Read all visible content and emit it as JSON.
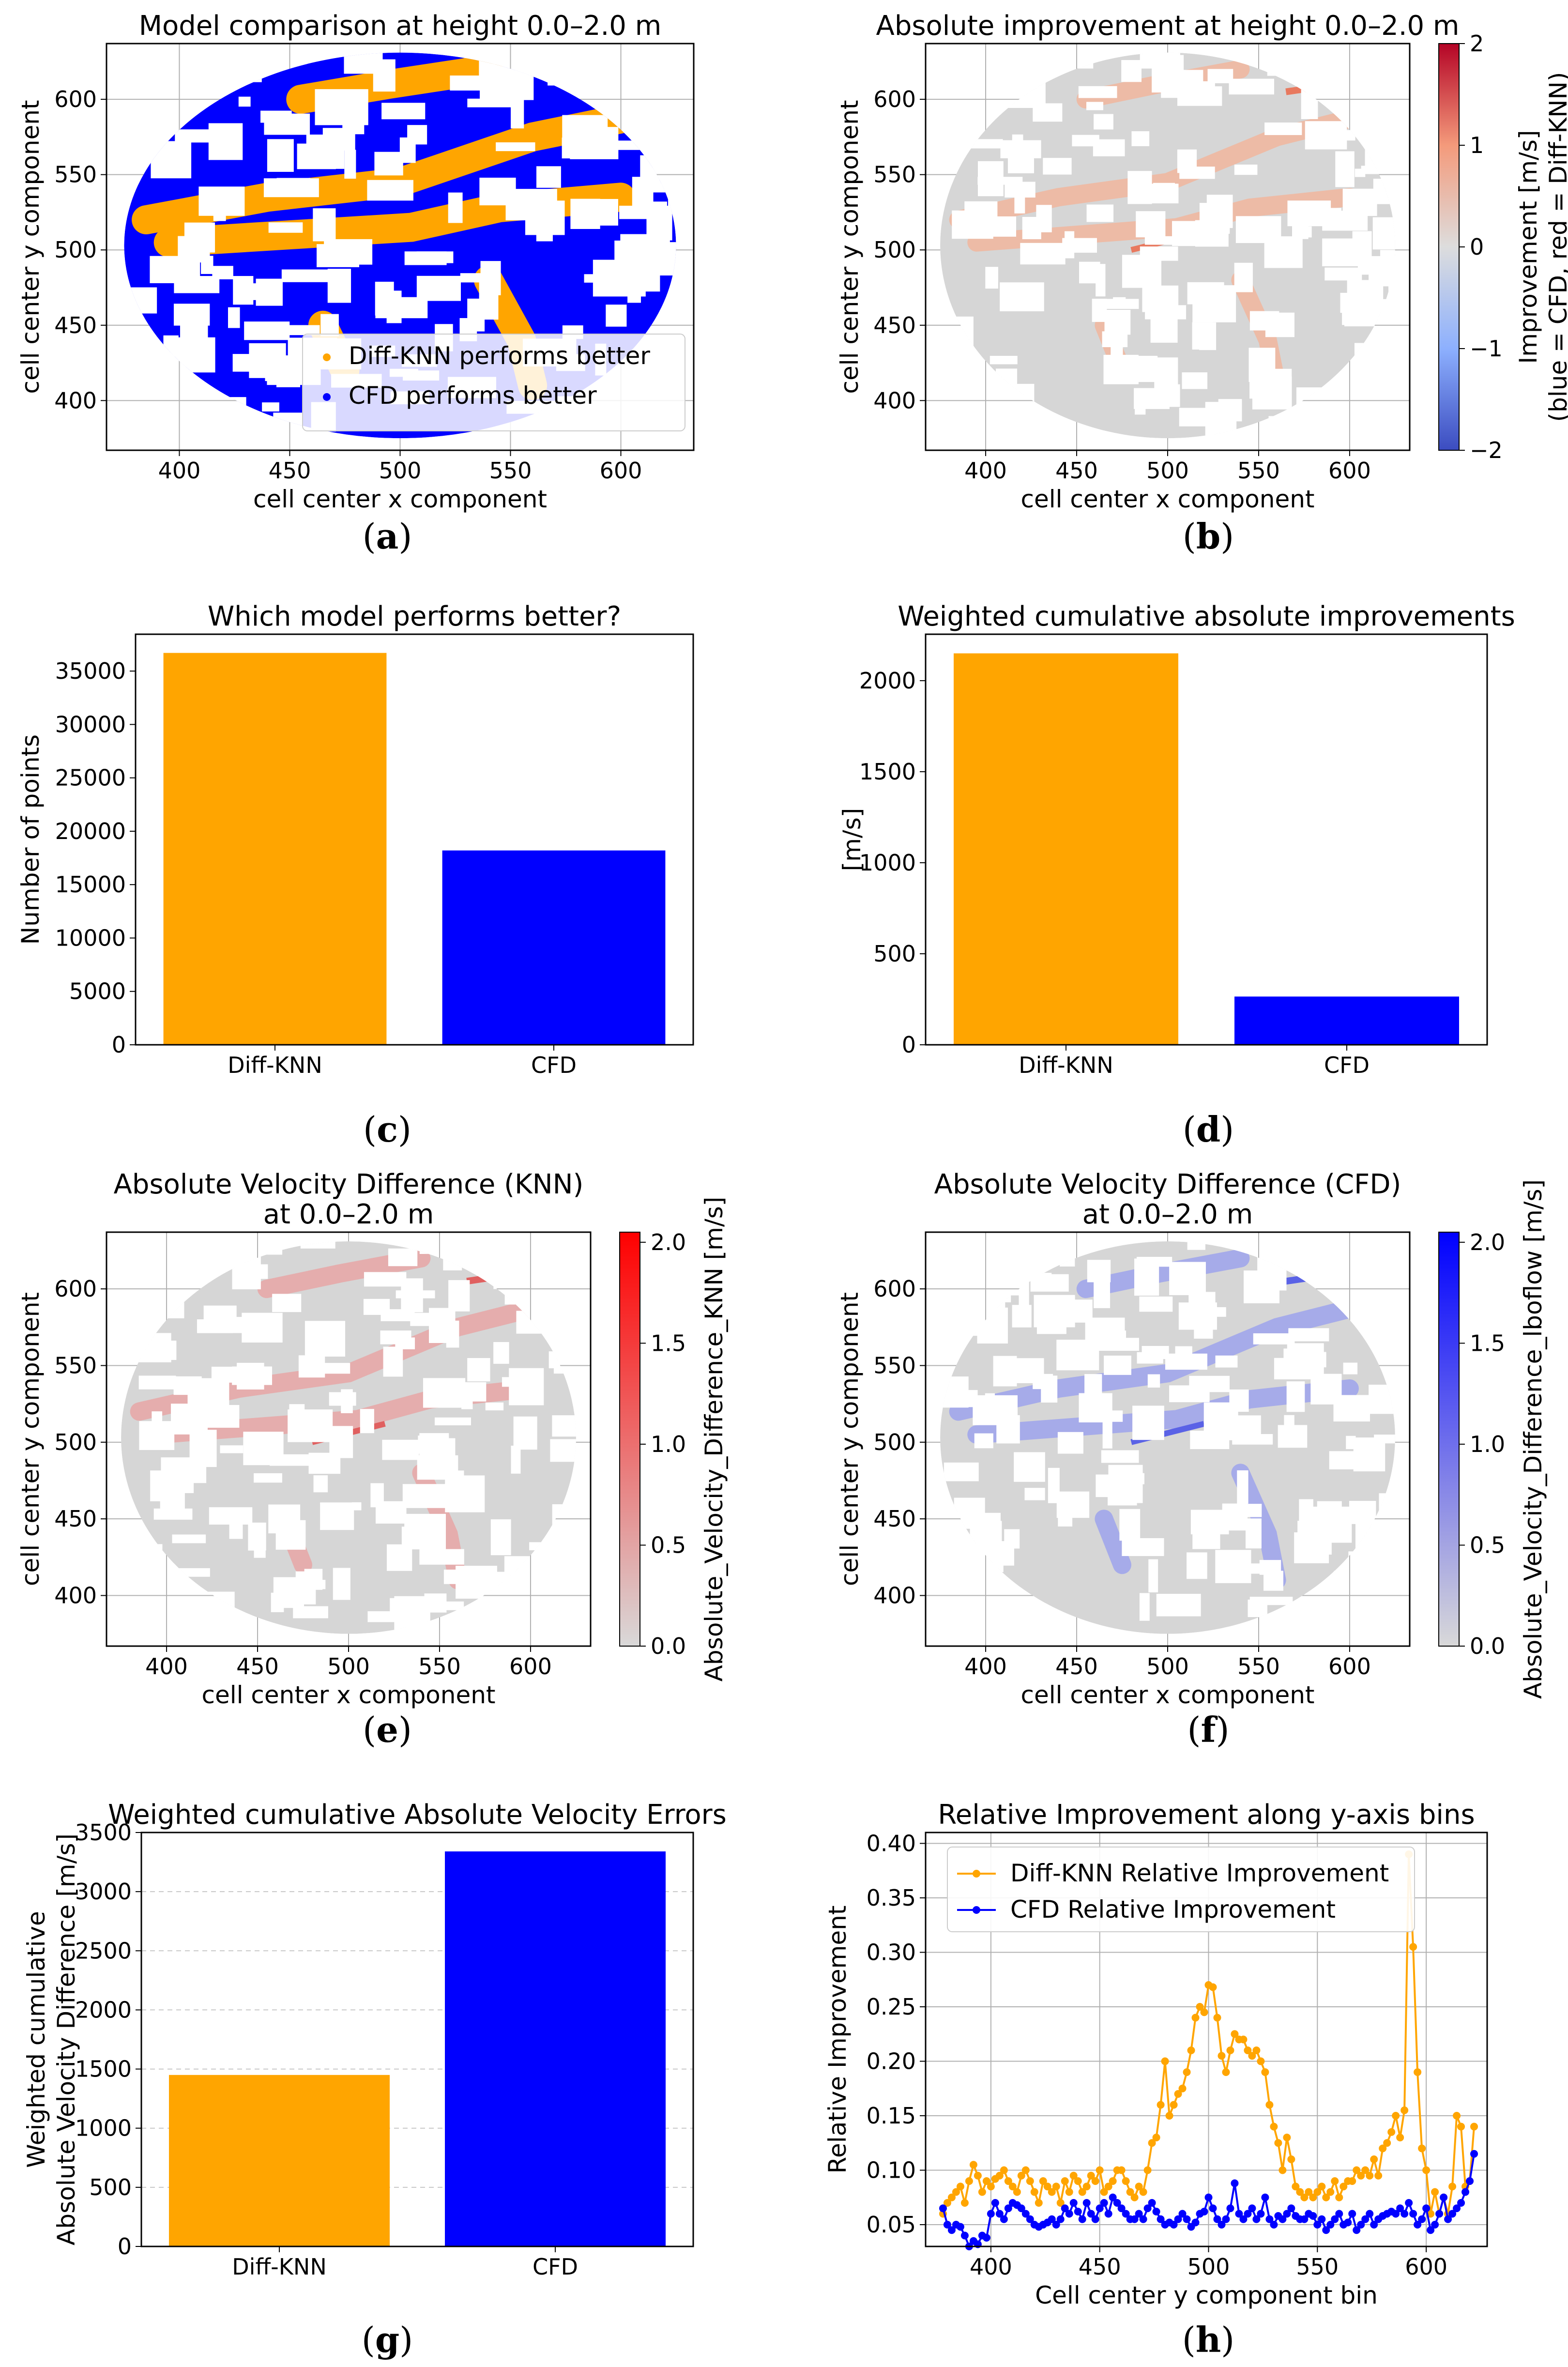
{
  "palette": {
    "orange": "#FFA500",
    "blue": "#0000FF",
    "grey": "#d9d9d9",
    "red": "#ff0000",
    "cool_low": "#3b4cc0",
    "cool_high": "#b40426"
  },
  "captions": [
    "a",
    "b",
    "c",
    "d",
    "e",
    "f",
    "g",
    "h"
  ],
  "chart_data": [
    {
      "id": "a",
      "type": "scatter",
      "title": "Model comparison at height 0.0–2.0 m",
      "xlabel": "cell center x component",
      "ylabel": "cell center y component",
      "xlim": [
        367,
        633
      ],
      "ylim": [
        367,
        637
      ],
      "xticks": [
        400,
        450,
        500,
        550,
        600
      ],
      "yticks": [
        400,
        450,
        500,
        550,
        600
      ],
      "grid": true,
      "legend": {
        "position": "lower-right",
        "entries": [
          {
            "label": "Diff-KNN performs better",
            "color": "#FFA500"
          },
          {
            "label": "CFD performs better",
            "color": "#0000FF"
          }
        ]
      },
      "domain": {
        "center": [
          500,
          503
        ],
        "radius_x": 125,
        "radius_y": 128
      }
    },
    {
      "id": "b",
      "type": "heatmap",
      "title": "Absolute improvement at height 0.0–2.0 m",
      "xlabel": "cell center x component",
      "ylabel": "cell center y component",
      "xlim": [
        367,
        633
      ],
      "ylim": [
        367,
        637
      ],
      "xticks": [
        400,
        450,
        500,
        550,
        600
      ],
      "yticks": [
        400,
        450,
        500,
        550,
        600
      ],
      "grid": true,
      "colorbar": {
        "min": -2,
        "max": 2,
        "ticks": [
          -2,
          -1,
          0,
          1,
          2
        ],
        "tick_labels": [
          "−2",
          "−1",
          "0",
          "1",
          "2"
        ],
        "label": "Improvement [m/s]",
        "label2": "(blue = CFD, red = Diff-KNN)",
        "cmap": "coolwarm"
      }
    },
    {
      "id": "c",
      "type": "bar",
      "title": "Which model performs better?",
      "categories": [
        "Diff-KNN",
        "CFD"
      ],
      "values": [
        36700,
        18200
      ],
      "colors": [
        "#FFA500",
        "#0000FF"
      ],
      "xlabel": "",
      "ylabel": "Number of points",
      "ylim": [
        0,
        38450
      ],
      "yticks": [
        0,
        5000,
        10000,
        15000,
        20000,
        25000,
        30000,
        35000
      ]
    },
    {
      "id": "d",
      "type": "bar",
      "title": "Weighted cumulative absolute improvements",
      "categories": [
        "Diff-KNN",
        "CFD"
      ],
      "values": [
        2150,
        265
      ],
      "colors": [
        "#FFA500",
        "#0000FF"
      ],
      "xlabel": "",
      "ylabel": "[m/s]",
      "ylim": [
        0,
        2255
      ],
      "yticks": [
        0,
        500,
        1000,
        1500,
        2000
      ]
    },
    {
      "id": "e",
      "type": "heatmap",
      "title": "Absolute Velocity Difference (KNN)",
      "title2": "at 0.0–2.0 m",
      "xlabel": "cell center x component",
      "ylabel": "cell center y component",
      "xlim": [
        367,
        633
      ],
      "ylim": [
        367,
        637
      ],
      "xticks": [
        400,
        450,
        500,
        550,
        600
      ],
      "yticks": [
        400,
        450,
        500,
        550,
        600
      ],
      "grid": true,
      "colorbar": {
        "min": 0,
        "max": 2.05,
        "ticks": [
          0,
          0.5,
          1,
          1.5,
          2
        ],
        "tick_labels": [
          "0.0",
          "0.5",
          "1.0",
          "1.5",
          "2.0"
        ],
        "label": "Absolute_Velocity_Difference_KNN [m/s]",
        "cmap": "grey-red"
      }
    },
    {
      "id": "f",
      "type": "heatmap",
      "title": "Absolute Velocity Difference (CFD)",
      "title2": "at 0.0–2.0 m",
      "xlabel": "cell center x component",
      "ylabel": "cell center y component",
      "xlim": [
        367,
        633
      ],
      "ylim": [
        367,
        637
      ],
      "xticks": [
        400,
        450,
        500,
        550,
        600
      ],
      "yticks": [
        400,
        450,
        500,
        550,
        600
      ],
      "grid": true,
      "colorbar": {
        "min": 0,
        "max": 2.05,
        "ticks": [
          0,
          0.5,
          1,
          1.5,
          2
        ],
        "tick_labels": [
          "0.0",
          "0.5",
          "1.0",
          "1.5",
          "2.0"
        ],
        "label": "Absolute_Velocity_Difference_lboflow [m/s]",
        "cmap": "grey-blue"
      }
    },
    {
      "id": "g",
      "type": "bar",
      "title": "Weighted cumulative Absolute Velocity Errors",
      "categories": [
        "Diff-KNN",
        "CFD"
      ],
      "values": [
        1450,
        3340
      ],
      "colors": [
        "#FFA500",
        "#0000FF"
      ],
      "xlabel": "",
      "ylabel": "Weighted cumulative",
      "ylabel2": "Absolute Velocity Difference [m/s]",
      "ylim": [
        0,
        3500
      ],
      "yticks": [
        0,
        500,
        1000,
        1500,
        2000,
        2500,
        3000,
        3500
      ]
    },
    {
      "id": "h",
      "type": "line",
      "title": "Relative Improvement along y-axis bins",
      "xlabel": "Cell center y component bin",
      "ylabel": "Relative Improvement",
      "xlim": [
        370,
        628
      ],
      "ylim": [
        0.03,
        0.41
      ],
      "xticks": [
        400,
        450,
        500,
        550,
        600
      ],
      "yticks": [
        0.05,
        0.1,
        0.15,
        0.2,
        0.25,
        0.3,
        0.35,
        0.4
      ],
      "ytick_labels": [
        "0.05",
        "0.10",
        "0.15",
        "0.20",
        "0.25",
        "0.30",
        "0.35",
        "0.40"
      ],
      "grid": true,
      "legend": {
        "position": "top-left"
      },
      "series": [
        {
          "name": "Diff-KNN Relative Improvement",
          "color": "#FFA500",
          "x": [
            378,
            380,
            382,
            384,
            386,
            388,
            390,
            392,
            394,
            396,
            398,
            400,
            402,
            404,
            406,
            408,
            410,
            412,
            414,
            416,
            418,
            420,
            422,
            424,
            426,
            428,
            430,
            432,
            434,
            436,
            438,
            440,
            442,
            444,
            446,
            448,
            450,
            452,
            454,
            456,
            458,
            460,
            462,
            464,
            466,
            468,
            470,
            472,
            474,
            476,
            478,
            480,
            482,
            484,
            486,
            488,
            490,
            492,
            494,
            496,
            498,
            500,
            502,
            504,
            506,
            508,
            510,
            512,
            514,
            516,
            518,
            520,
            522,
            524,
            526,
            528,
            530,
            532,
            534,
            536,
            538,
            540,
            542,
            544,
            546,
            548,
            550,
            552,
            554,
            556,
            558,
            560,
            562,
            564,
            566,
            568,
            570,
            572,
            574,
            576,
            578,
            580,
            582,
            584,
            586,
            588,
            590,
            592,
            594,
            596,
            598,
            600,
            602,
            604,
            606,
            608,
            610,
            612,
            614,
            616,
            618,
            620,
            622
          ],
          "y": [
            0.06,
            0.07,
            0.075,
            0.08,
            0.085,
            0.07,
            0.09,
            0.105,
            0.095,
            0.08,
            0.09,
            0.085,
            0.092,
            0.095,
            0.1,
            0.09,
            0.085,
            0.08,
            0.095,
            0.1,
            0.09,
            0.08,
            0.07,
            0.09,
            0.085,
            0.08,
            0.085,
            0.07,
            0.09,
            0.08,
            0.095,
            0.09,
            0.08,
            0.085,
            0.095,
            0.09,
            0.1,
            0.08,
            0.085,
            0.09,
            0.1,
            0.1,
            0.09,
            0.08,
            0.075,
            0.085,
            0.08,
            0.1,
            0.125,
            0.13,
            0.16,
            0.2,
            0.15,
            0.16,
            0.17,
            0.175,
            0.19,
            0.21,
            0.24,
            0.25,
            0.245,
            0.27,
            0.268,
            0.24,
            0.205,
            0.19,
            0.21,
            0.225,
            0.22,
            0.22,
            0.21,
            0.205,
            0.21,
            0.2,
            0.19,
            0.16,
            0.14,
            0.125,
            0.1,
            0.13,
            0.11,
            0.085,
            0.08,
            0.075,
            0.08,
            0.075,
            0.08,
            0.085,
            0.075,
            0.08,
            0.09,
            0.075,
            0.085,
            0.09,
            0.09,
            0.1,
            0.095,
            0.1,
            0.095,
            0.11,
            0.095,
            0.12,
            0.125,
            0.135,
            0.15,
            0.13,
            0.155,
            0.39,
            0.305,
            0.19,
            0.12,
            0.1,
            0.06,
            0.08,
            0.06,
            0.075,
            0.06,
            0.085,
            0.15,
            0.14,
            0.085,
            0.09,
            0.14
          ]
        },
        {
          "name": "CFD Relative Improvement",
          "color": "#0000FF",
          "x": [
            378,
            380,
            382,
            384,
            386,
            388,
            390,
            392,
            394,
            396,
            398,
            400,
            402,
            404,
            406,
            408,
            410,
            412,
            414,
            416,
            418,
            420,
            422,
            424,
            426,
            428,
            430,
            432,
            434,
            436,
            438,
            440,
            442,
            444,
            446,
            448,
            450,
            452,
            454,
            456,
            458,
            460,
            462,
            464,
            466,
            468,
            470,
            472,
            474,
            476,
            478,
            480,
            482,
            484,
            486,
            488,
            490,
            492,
            494,
            496,
            498,
            500,
            502,
            504,
            506,
            508,
            510,
            512,
            514,
            516,
            518,
            520,
            522,
            524,
            526,
            528,
            530,
            532,
            534,
            536,
            538,
            540,
            542,
            544,
            546,
            548,
            550,
            552,
            554,
            556,
            558,
            560,
            562,
            564,
            566,
            568,
            570,
            572,
            574,
            576,
            578,
            580,
            582,
            584,
            586,
            588,
            590,
            592,
            594,
            596,
            598,
            600,
            602,
            604,
            606,
            608,
            610,
            612,
            614,
            616,
            618,
            620,
            622
          ],
          "y": [
            0.065,
            0.05,
            0.045,
            0.05,
            0.048,
            0.04,
            0.03,
            0.035,
            0.032,
            0.04,
            0.038,
            0.06,
            0.07,
            0.06,
            0.055,
            0.065,
            0.07,
            0.068,
            0.065,
            0.06,
            0.055,
            0.05,
            0.048,
            0.05,
            0.052,
            0.055,
            0.05,
            0.055,
            0.065,
            0.06,
            0.07,
            0.062,
            0.055,
            0.07,
            0.06,
            0.055,
            0.065,
            0.07,
            0.06,
            0.075,
            0.07,
            0.065,
            0.06,
            0.055,
            0.055,
            0.06,
            0.055,
            0.065,
            0.07,
            0.062,
            0.055,
            0.05,
            0.052,
            0.05,
            0.055,
            0.06,
            0.055,
            0.048,
            0.052,
            0.06,
            0.062,
            0.075,
            0.065,
            0.055,
            0.05,
            0.055,
            0.065,
            0.088,
            0.06,
            0.055,
            0.06,
            0.065,
            0.055,
            0.06,
            0.075,
            0.055,
            0.05,
            0.058,
            0.055,
            0.06,
            0.065,
            0.058,
            0.055,
            0.055,
            0.06,
            0.058,
            0.05,
            0.055,
            0.045,
            0.05,
            0.055,
            0.06,
            0.05,
            0.052,
            0.06,
            0.045,
            0.05,
            0.055,
            0.06,
            0.05,
            0.055,
            0.058,
            0.06,
            0.062,
            0.06,
            0.065,
            0.06,
            0.07,
            0.06,
            0.05,
            0.055,
            0.065,
            0.045,
            0.05,
            0.06,
            0.075,
            0.055,
            0.06,
            0.065,
            0.07,
            0.08,
            0.09,
            0.115
          ]
        }
      ]
    }
  ]
}
